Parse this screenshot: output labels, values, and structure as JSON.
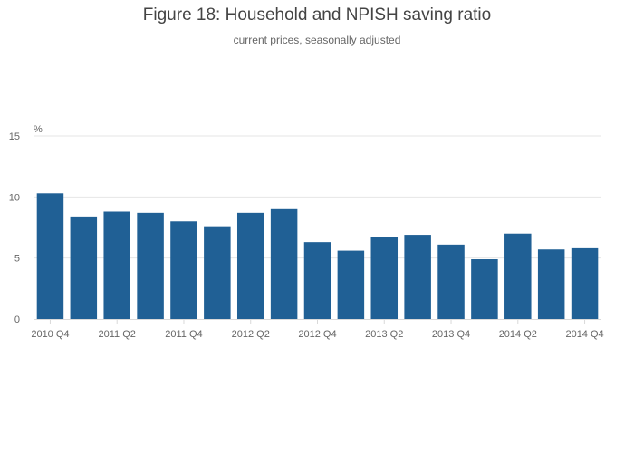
{
  "chart_data": {
    "type": "bar",
    "title": "Figure 18: Household and NPISH saving ratio",
    "subtitle": "current prices, seasonally adjusted",
    "ylabel": "%",
    "xlabel": "",
    "categories": [
      "2010 Q4",
      "2011 Q1",
      "2011 Q2",
      "2011 Q3",
      "2011 Q4",
      "2012 Q1",
      "2012 Q2",
      "2012 Q3",
      "2012 Q4",
      "2013 Q1",
      "2013 Q2",
      "2013 Q3",
      "2013 Q4",
      "2014 Q1",
      "2014 Q2",
      "2014 Q3",
      "2014 Q4"
    ],
    "x_tick_labels": [
      "2010 Q4",
      "2011 Q2",
      "2011 Q4",
      "2012 Q2",
      "2012 Q4",
      "2013 Q2",
      "2013 Q4",
      "2014 Q2",
      "2014 Q4"
    ],
    "values": [
      10.3,
      8.4,
      8.8,
      8.7,
      8.0,
      7.6,
      8.7,
      9.0,
      6.3,
      5.6,
      6.7,
      6.9,
      6.1,
      4.9,
      7.0,
      5.7,
      5.8
    ],
    "ylim": [
      0,
      15
    ],
    "y_ticks": [
      0,
      5,
      10,
      15
    ],
    "grid": true,
    "bar_color": "#206095"
  }
}
